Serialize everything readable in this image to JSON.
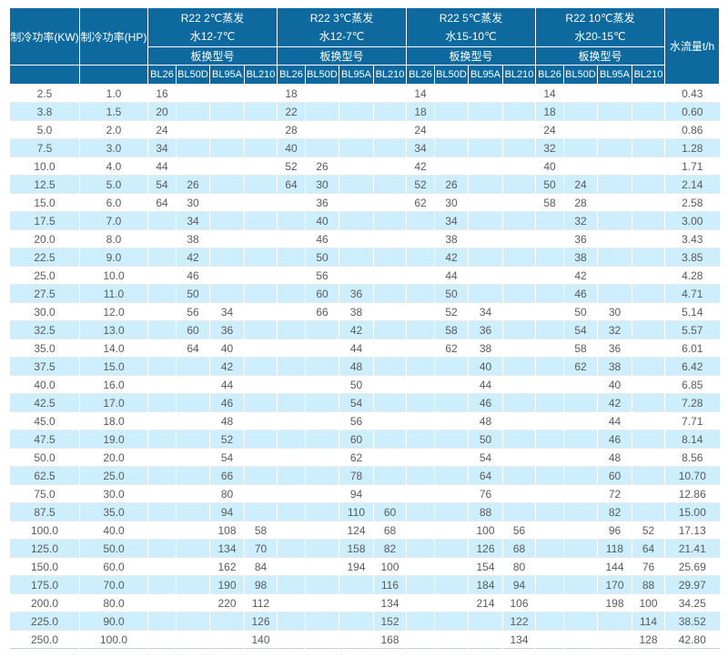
{
  "colors": {
    "header_bg": "#0d699e",
    "header_text": "#ffffff",
    "row_alt_bg": "#cdeefc",
    "body_text": "#595a5c",
    "grid_line": "#e7e9ea",
    "bottom_border": "#c8cdd1"
  },
  "chart_data": {
    "type": "table",
    "headers": {
      "kw": "制冷功率(KW)",
      "hp": "制冷功率(HP)",
      "flow": "水流量t/h",
      "model_label": "板换型号",
      "groups": [
        {
          "line1": "R22 2℃蒸发",
          "line2": "水12-7℃",
          "models": [
            "BL26",
            "BL50D",
            "BL95A",
            "BL210"
          ]
        },
        {
          "line1": "R22 3℃蒸发",
          "line2": "水12-7℃",
          "models": [
            "BL26",
            "BL50D",
            "BL95A",
            "BL210"
          ]
        },
        {
          "line1": "R22 5℃蒸发",
          "line2": "水15-10℃",
          "models": [
            "BL26",
            "BL50D",
            "BL95A",
            "BL210"
          ]
        },
        {
          "line1": "R22 10℃蒸发",
          "line2": "水20-15℃",
          "models": [
            "BL26",
            "BL50D",
            "BL95A",
            "BL210"
          ]
        }
      ]
    },
    "rows": [
      {
        "kw": "2.5",
        "hp": "1.0",
        "cells": [
          "16",
          "",
          "",
          "",
          "18",
          "",
          "",
          "",
          "14",
          "",
          "",
          "",
          "14",
          "",
          "",
          ""
        ],
        "flow": "0.43"
      },
      {
        "kw": "3.8",
        "hp": "1.5",
        "cells": [
          "20",
          "",
          "",
          "",
          "22",
          "",
          "",
          "",
          "18",
          "",
          "",
          "",
          "18",
          "",
          "",
          ""
        ],
        "flow": "0.60"
      },
      {
        "kw": "5.0",
        "hp": "2.0",
        "cells": [
          "24",
          "",
          "",
          "",
          "28",
          "",
          "",
          "",
          "24",
          "",
          "",
          "",
          "24",
          "",
          "",
          ""
        ],
        "flow": "0.86"
      },
      {
        "kw": "7.5",
        "hp": "3.0",
        "cells": [
          "34",
          "",
          "",
          "",
          "40",
          "",
          "",
          "",
          "34",
          "",
          "",
          "",
          "32",
          "",
          "",
          ""
        ],
        "flow": "1.28"
      },
      {
        "kw": "10.0",
        "hp": "4.0",
        "cells": [
          "44",
          "",
          "",
          "",
          "52",
          "26",
          "",
          "",
          "42",
          "",
          "",
          "",
          "40",
          "",
          "",
          ""
        ],
        "flow": "1.71"
      },
      {
        "kw": "12.5",
        "hp": "5.0",
        "cells": [
          "54",
          "26",
          "",
          "",
          "64",
          "30",
          "",
          "",
          "52",
          "26",
          "",
          "",
          "50",
          "24",
          "",
          ""
        ],
        "flow": "2.14"
      },
      {
        "kw": "15.0",
        "hp": "6.0",
        "cells": [
          "64",
          "30",
          "",
          "",
          "",
          "36",
          "",
          "",
          "62",
          "30",
          "",
          "",
          "58",
          "28",
          "",
          ""
        ],
        "flow": "2.58"
      },
      {
        "kw": "17.5",
        "hp": "7.0",
        "cells": [
          "",
          "34",
          "",
          "",
          "",
          "40",
          "",
          "",
          "",
          "34",
          "",
          "",
          "",
          "32",
          "",
          ""
        ],
        "flow": "3.00"
      },
      {
        "kw": "20.0",
        "hp": "8.0",
        "cells": [
          "",
          "38",
          "",
          "",
          "",
          "46",
          "",
          "",
          "",
          "38",
          "",
          "",
          "",
          "36",
          "",
          ""
        ],
        "flow": "3.43"
      },
      {
        "kw": "22.5",
        "hp": "9.0",
        "cells": [
          "",
          "42",
          "",
          "",
          "",
          "50",
          "",
          "",
          "",
          "42",
          "",
          "",
          "",
          "38",
          "",
          ""
        ],
        "flow": "3.85"
      },
      {
        "kw": "25.0",
        "hp": "10.0",
        "cells": [
          "",
          "46",
          "",
          "",
          "",
          "56",
          "",
          "",
          "",
          "44",
          "",
          "",
          "",
          "42",
          "",
          ""
        ],
        "flow": "4.28"
      },
      {
        "kw": "27.5",
        "hp": "11.0",
        "cells": [
          "",
          "50",
          "",
          "",
          "",
          "60",
          "36",
          "",
          "",
          "50",
          "",
          "",
          "",
          "46",
          "",
          ""
        ],
        "flow": "4.71"
      },
      {
        "kw": "30.0",
        "hp": "12.0",
        "cells": [
          "",
          "56",
          "34",
          "",
          "",
          "66",
          "38",
          "",
          "",
          "52",
          "34",
          "",
          "",
          "50",
          "30",
          ""
        ],
        "flow": "5.14"
      },
      {
        "kw": "32.5",
        "hp": "13.0",
        "cells": [
          "",
          "60",
          "36",
          "",
          "",
          "",
          "42",
          "",
          "",
          "58",
          "36",
          "",
          "",
          "54",
          "32",
          ""
        ],
        "flow": "5.57"
      },
      {
        "kw": "35.0",
        "hp": "14.0",
        "cells": [
          "",
          "64",
          "40",
          "",
          "",
          "",
          "44",
          "",
          "",
          "62",
          "38",
          "",
          "",
          "58",
          "36",
          ""
        ],
        "flow": "6.01"
      },
      {
        "kw": "37.5",
        "hp": "15.0",
        "cells": [
          "",
          "",
          "42",
          "",
          "",
          "",
          "48",
          "",
          "",
          "",
          "40",
          "",
          "",
          "62",
          "38",
          ""
        ],
        "flow": "6.42"
      },
      {
        "kw": "40.0",
        "hp": "16.0",
        "cells": [
          "",
          "",
          "44",
          "",
          "",
          "",
          "50",
          "",
          "",
          "",
          "44",
          "",
          "",
          "",
          "40",
          ""
        ],
        "flow": "6.85"
      },
      {
        "kw": "42.5",
        "hp": "17.0",
        "cells": [
          "",
          "",
          "46",
          "",
          "",
          "",
          "54",
          "",
          "",
          "",
          "46",
          "",
          "",
          "",
          "42",
          ""
        ],
        "flow": "7.28"
      },
      {
        "kw": "45.0",
        "hp": "18.0",
        "cells": [
          "",
          "",
          "48",
          "",
          "",
          "",
          "56",
          "",
          "",
          "",
          "48",
          "",
          "",
          "",
          "44",
          ""
        ],
        "flow": "7.71"
      },
      {
        "kw": "47.5",
        "hp": "19.0",
        "cells": [
          "",
          "",
          "52",
          "",
          "",
          "",
          "60",
          "",
          "",
          "",
          "50",
          "",
          "",
          "",
          "46",
          ""
        ],
        "flow": "8.14"
      },
      {
        "kw": "50.0",
        "hp": "20.0",
        "cells": [
          "",
          "",
          "54",
          "",
          "",
          "",
          "62",
          "",
          "",
          "",
          "54",
          "",
          "",
          "",
          "48",
          ""
        ],
        "flow": "8.56"
      },
      {
        "kw": "62.5",
        "hp": "25.0",
        "cells": [
          "",
          "",
          "66",
          "",
          "",
          "",
          "78",
          "",
          "",
          "",
          "64",
          "",
          "",
          "",
          "60",
          ""
        ],
        "flow": "10.70"
      },
      {
        "kw": "75.0",
        "hp": "30.0",
        "cells": [
          "",
          "",
          "80",
          "",
          "",
          "",
          "94",
          "",
          "",
          "",
          "76",
          "",
          "",
          "",
          "72",
          ""
        ],
        "flow": "12.86"
      },
      {
        "kw": "87.5",
        "hp": "35.0",
        "cells": [
          "",
          "",
          "94",
          "",
          "",
          "",
          "110",
          "60",
          "",
          "",
          "88",
          "",
          "",
          "",
          "82",
          ""
        ],
        "flow": "15.00"
      },
      {
        "kw": "100.0",
        "hp": "40.0",
        "cells": [
          "",
          "",
          "108",
          "58",
          "",
          "",
          "124",
          "68",
          "",
          "",
          "100",
          "56",
          "",
          "",
          "96",
          "52"
        ],
        "flow": "17.13"
      },
      {
        "kw": "125.0",
        "hp": "50.0",
        "cells": [
          "",
          "",
          "134",
          "70",
          "",
          "",
          "158",
          "82",
          "",
          "",
          "126",
          "68",
          "",
          "",
          "118",
          "64"
        ],
        "flow": "21.41"
      },
      {
        "kw": "150.0",
        "hp": "60.0",
        "cells": [
          "",
          "",
          "162",
          "84",
          "",
          "",
          "194",
          "100",
          "",
          "",
          "154",
          "80",
          "",
          "",
          "144",
          "76"
        ],
        "flow": "25.69"
      },
      {
        "kw": "175.0",
        "hp": "70.0",
        "cells": [
          "",
          "",
          "190",
          "98",
          "",
          "",
          "",
          "116",
          "",
          "",
          "184",
          "94",
          "",
          "",
          "170",
          "88"
        ],
        "flow": "29.97"
      },
      {
        "kw": "200.0",
        "hp": "80.0",
        "cells": [
          "",
          "",
          "220",
          "112",
          "",
          "",
          "",
          "134",
          "",
          "",
          "214",
          "106",
          "",
          "",
          "198",
          "100"
        ],
        "flow": "34.25"
      },
      {
        "kw": "225.0",
        "hp": "90.0",
        "cells": [
          "",
          "",
          "",
          "126",
          "",
          "",
          "",
          "152",
          "",
          "",
          "",
          "122",
          "",
          "",
          "",
          "114"
        ],
        "flow": "38.52"
      },
      {
        "kw": "250.0",
        "hp": "100.0",
        "cells": [
          "",
          "",
          "",
          "140",
          "",
          "",
          "",
          "168",
          "",
          "",
          "",
          "134",
          "",
          "",
          "",
          "128"
        ],
        "flow": "42.80"
      }
    ]
  }
}
